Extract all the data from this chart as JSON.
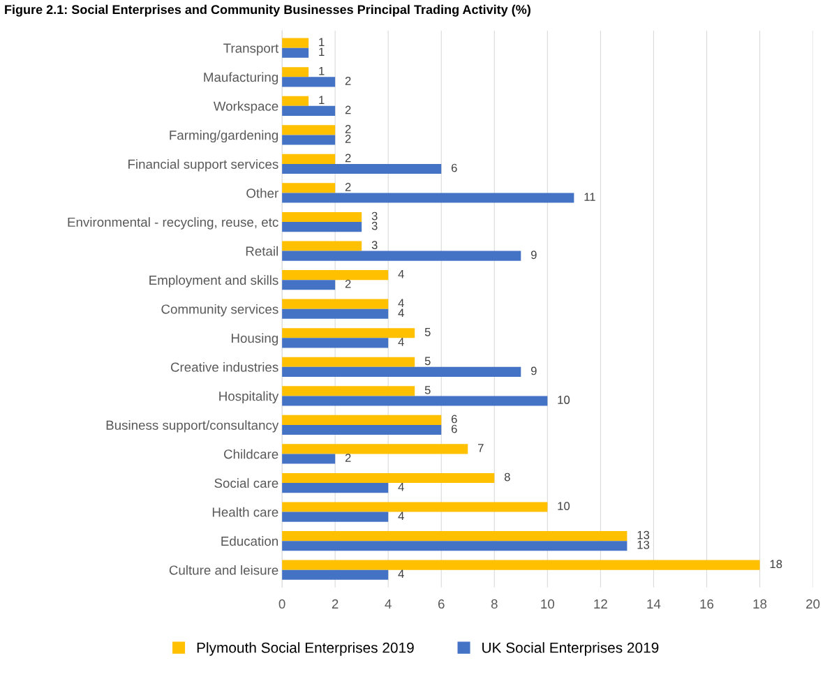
{
  "chart_data": {
    "type": "bar",
    "orientation": "horizontal",
    "title": "Figure 2.1: Social Enterprises and Community Businesses Principal Trading Activity (%)",
    "categories": [
      "Transport",
      "Maufacturing",
      "Workspace",
      "Farming/gardening",
      "Financial support services",
      "Other",
      "Environmental - recycling, reuse, etc",
      "Retail",
      "Employment and skills",
      "Community services",
      "Housing",
      "Creative industries",
      "Hospitality",
      "Business support/consultancy",
      "Childcare",
      "Social care",
      "Health care",
      "Education",
      "Culture and leisure"
    ],
    "series": [
      {
        "name": "Plymouth Social Enterprises 2019",
        "color": "#ffc000",
        "values": [
          1,
          1,
          1,
          2,
          2,
          2,
          3,
          3,
          4,
          4,
          5,
          5,
          5,
          6,
          7,
          8,
          10,
          13,
          18
        ]
      },
      {
        "name": "UK Social Enterprises 2019",
        "color": "#4472c4",
        "values": [
          1,
          2,
          2,
          2,
          6,
          11,
          3,
          9,
          2,
          4,
          4,
          9,
          10,
          6,
          2,
          4,
          4,
          13,
          4
        ]
      }
    ],
    "xlim": [
      0,
      20
    ],
    "xticks": [
      0,
      2,
      4,
      6,
      8,
      10,
      12,
      14,
      16,
      18,
      20
    ],
    "grid": "x",
    "legend": "bottom",
    "data_labels": true
  }
}
